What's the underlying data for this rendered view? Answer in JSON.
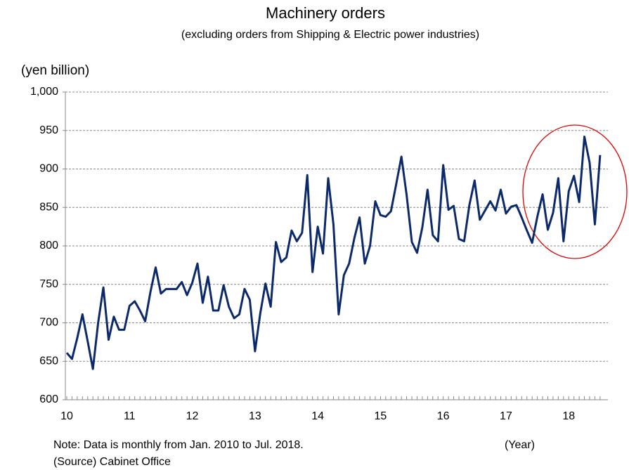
{
  "chart_data": {
    "type": "line",
    "title": "Machinery orders",
    "subtitle": "(excluding orders from Shipping & Electric power industries)",
    "y_axis_label": "(yen billion)",
    "x_axis_label": "(Year)",
    "note": "Note: Data is monthly from Jan. 2010 to Jul. 2018.",
    "source": "(Source)  Cabinet Office",
    "categories": [
      "10",
      null,
      null,
      null,
      null,
      null,
      null,
      null,
      null,
      null,
      null,
      null,
      "11",
      null,
      null,
      null,
      null,
      null,
      null,
      null,
      null,
      null,
      null,
      null,
      "12",
      null,
      null,
      null,
      null,
      null,
      null,
      null,
      null,
      null,
      null,
      null,
      "13",
      null,
      null,
      null,
      null,
      null,
      null,
      null,
      null,
      null,
      null,
      null,
      "14",
      null,
      null,
      null,
      null,
      null,
      null,
      null,
      null,
      null,
      null,
      null,
      "15",
      null,
      null,
      null,
      null,
      null,
      null,
      null,
      null,
      null,
      null,
      null,
      "16",
      null,
      null,
      null,
      null,
      null,
      null,
      null,
      null,
      null,
      null,
      null,
      "17",
      null,
      null,
      null,
      null,
      null,
      null,
      null,
      null,
      null,
      null,
      null,
      "18",
      null,
      null,
      null,
      null,
      null,
      null
    ],
    "series": [
      {
        "name": "Machinery orders",
        "color": "#0c2a6b",
        "values": [
          661,
          653,
          680,
          711,
          676,
          640,
          700,
          746,
          678,
          708,
          691,
          691,
          722,
          728,
          716,
          702,
          740,
          772,
          738,
          744,
          744,
          744,
          753,
          736,
          752,
          777,
          726,
          760,
          716,
          716,
          749,
          721,
          706,
          711,
          744,
          730,
          663,
          712,
          751,
          721,
          805,
          779,
          785,
          820,
          806,
          817,
          892,
          766,
          825,
          790,
          888,
          828,
          711,
          762,
          777,
          810,
          837,
          777,
          800,
          858,
          840,
          838,
          845,
          880,
          916,
          866,
          805,
          791,
          824,
          873,
          814,
          806,
          905,
          847,
          852,
          809,
          806,
          853,
          885,
          834,
          846,
          858,
          846,
          873,
          842,
          851,
          853,
          837,
          820,
          804,
          838,
          867,
          821,
          843,
          888,
          806,
          871,
          891,
          857,
          942,
          908,
          828,
          918
        ]
      }
    ],
    "ylim": [
      600,
      1000
    ],
    "yticks": [
      600,
      650,
      700,
      750,
      800,
      850,
      900,
      950,
      {
        "value": 1000,
        "label": "1,000"
      }
    ],
    "grid": true
  }
}
